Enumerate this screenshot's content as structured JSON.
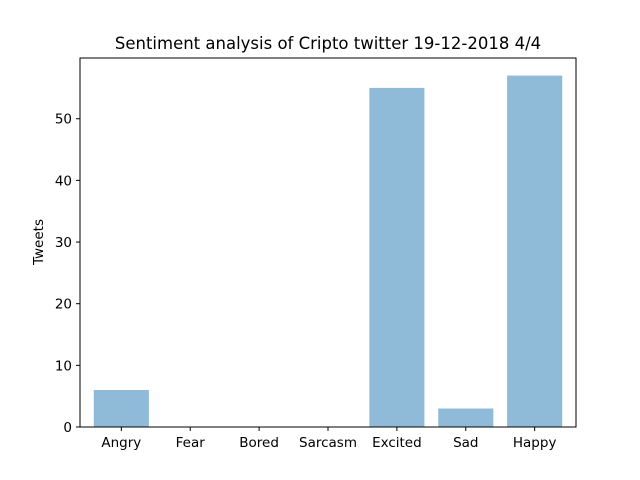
{
  "chart_data": {
    "type": "bar",
    "title": "Sentiment analysis of Cripto twitter 19-12-2018 4/4",
    "xlabel": "",
    "ylabel": "Tweets",
    "categories": [
      "Angry",
      "Fear",
      "Bored",
      "Sarcasm",
      "Excited",
      "Sad",
      "Happy"
    ],
    "values": [
      6,
      0,
      0,
      0,
      55,
      3,
      57
    ],
    "ylim": [
      0,
      59.85
    ],
    "yticks": [
      0,
      10,
      20,
      30,
      40,
      50
    ],
    "bar_color": "#8fbbd9",
    "grid": false,
    "legend": "none"
  }
}
